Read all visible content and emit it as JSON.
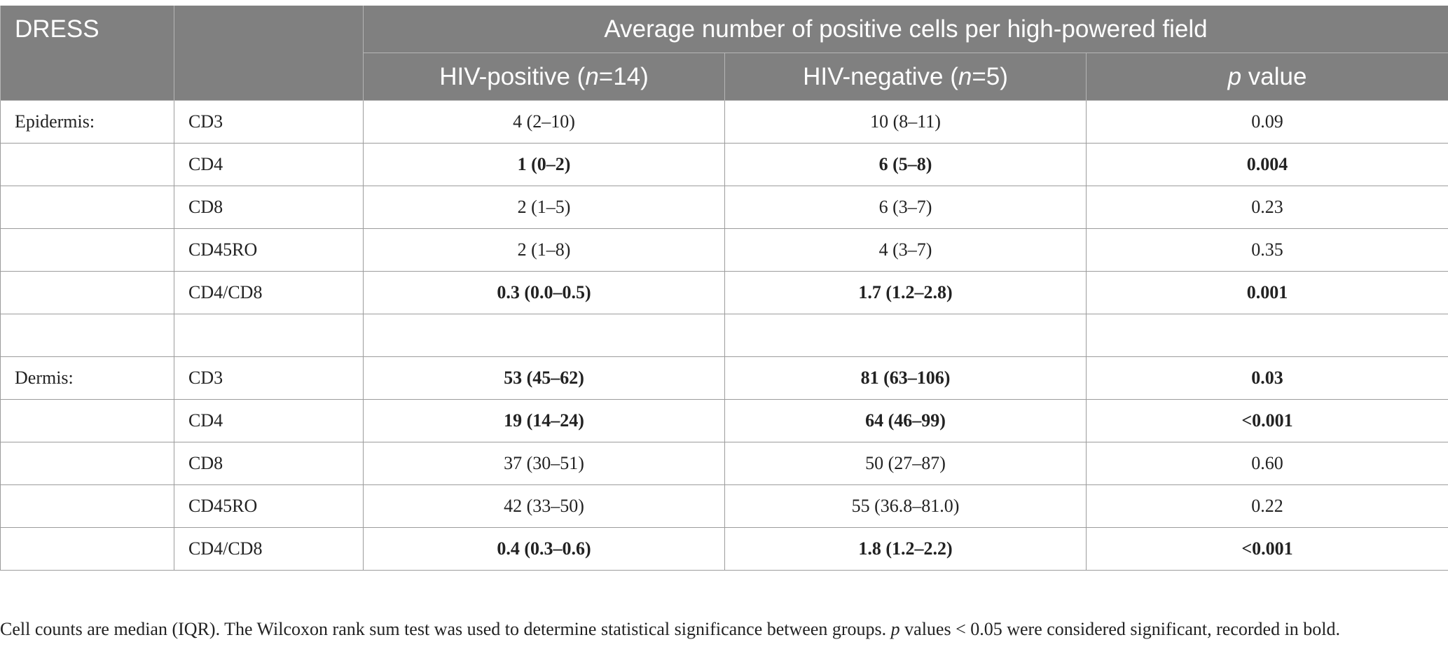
{
  "header": {
    "corner": "DRESS",
    "group_title": "Average number of positive cells per high-powered field",
    "col_hiv_pos_pre": "HIV-positive (",
    "col_hiv_pos_n": "n",
    "col_hiv_pos_post": "=14)",
    "col_hiv_neg_pre": "HIV-negative (",
    "col_hiv_neg_n": "n",
    "col_hiv_neg_post": "=5)",
    "col_p_italic": "p",
    "col_p_rest": " value"
  },
  "rows": [
    {
      "region": "Epidermis:",
      "marker": "CD3",
      "pos": "4 (2–10)",
      "neg": "10 (8–11)",
      "p": "0.09"
    },
    {
      "region": "",
      "marker": "CD4",
      "pos": "1 (0–2)",
      "neg": "6 (5–8)",
      "p": "0.004"
    },
    {
      "region": "",
      "marker": "CD8",
      "pos": "2 (1–5)",
      "neg": "6 (3–7)",
      "p": "0.23"
    },
    {
      "region": "",
      "marker": "CD45RO",
      "pos": "2 (1–8)",
      "neg": "4 (3–7)",
      "p": "0.35"
    },
    {
      "region": "",
      "marker": "CD4/CD8",
      "pos": "0.3 (0.0–0.5)",
      "neg": "1.7 (1.2–2.8)",
      "p": "0.001"
    },
    {
      "region": "",
      "marker": "",
      "pos": "",
      "neg": "",
      "p": ""
    },
    {
      "region": "Dermis:",
      "marker": "CD3",
      "pos": "53 (45–62)",
      "neg": "81 (63–106)",
      "p": "0.03"
    },
    {
      "region": "",
      "marker": "CD4",
      "pos": "19 (14–24)",
      "neg": "64 (46–99)",
      "p": "<0.001"
    },
    {
      "region": "",
      "marker": "CD8",
      "pos": "37 (30–51)",
      "neg": "50 (27–87)",
      "p": "0.60"
    },
    {
      "region": "",
      "marker": "CD45RO",
      "pos": "42 (33–50)",
      "neg": "55 (36.8–81.0)",
      "p": "0.22"
    },
    {
      "region": "",
      "marker": "CD4/CD8",
      "pos": "0.4 (0.3–0.6)",
      "neg": "1.8 (1.2–2.2)",
      "p": "<0.001"
    }
  ],
  "footnote": {
    "part1": "Cell counts are median (IQR). The Wilcoxon rank sum test was used to determine statistical significance between groups. ",
    "p_italic": "p",
    "part2": " values < 0.05 were considered significant, recorded in bold."
  }
}
